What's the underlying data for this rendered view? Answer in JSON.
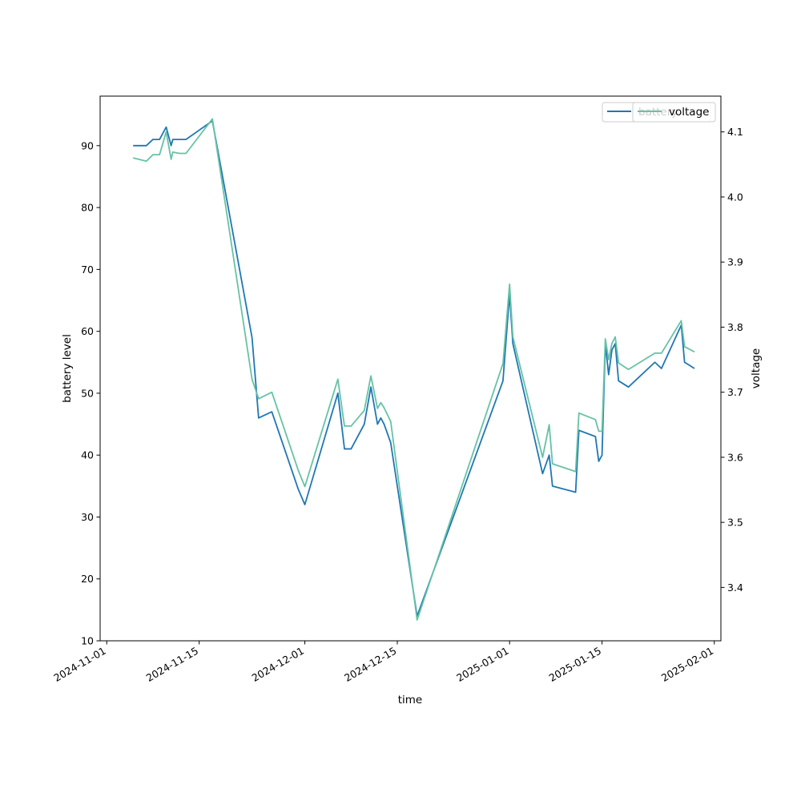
{
  "chart_data": {
    "type": "line",
    "xlabel": "time",
    "ylabel_left": "battery level",
    "ylabel_right": "voltage",
    "x_ticks": [
      "2024-11-01",
      "2024-11-15",
      "2024-12-01",
      "2024-12-15",
      "2025-01-01",
      "2025-01-15",
      "2025-02-01"
    ],
    "y_left_ticks": [
      10,
      20,
      30,
      40,
      50,
      60,
      70,
      80,
      90
    ],
    "y_right_ticks": [
      3.4,
      3.5,
      3.6,
      3.7,
      3.8,
      3.9,
      4.0,
      4.1
    ],
    "x_range": [
      "2024-10-31",
      "2025-02-02"
    ],
    "y_left_range": [
      10,
      98
    ],
    "y_right_range": [
      3.318,
      4.155
    ],
    "legend_placement": "top-right",
    "legend": {
      "battery_label": "battery",
      "voltage_label": "voltage"
    },
    "series": [
      {
        "name": "battery",
        "axis": "left",
        "color": "#1f77b4",
        "points": [
          [
            "2024-11-05",
            90
          ],
          [
            "2024-11-07",
            90
          ],
          [
            "2024-11-08",
            91
          ],
          [
            "2024-11-09",
            91
          ],
          [
            "2024-11-10",
            93
          ],
          [
            "2024-11-10T18",
            90
          ],
          [
            "2024-11-11",
            91
          ],
          [
            "2024-11-13",
            91
          ],
          [
            "2024-11-17",
            94
          ],
          [
            "2024-11-23",
            59
          ],
          [
            "2024-11-24",
            46
          ],
          [
            "2024-11-26",
            47
          ],
          [
            "2024-11-30",
            34.5
          ],
          [
            "2024-12-01",
            32
          ],
          [
            "2024-12-06",
            50
          ],
          [
            "2024-12-07",
            41
          ],
          [
            "2024-12-08",
            41
          ],
          [
            "2024-12-10",
            45
          ],
          [
            "2024-12-11",
            51
          ],
          [
            "2024-12-12",
            45
          ],
          [
            "2024-12-12T12",
            46
          ],
          [
            "2024-12-13",
            45
          ],
          [
            "2024-12-14",
            42
          ],
          [
            "2024-12-18",
            14
          ],
          [
            "2024-12-31",
            52
          ],
          [
            "2025-01-01",
            66
          ],
          [
            "2025-01-01T12",
            58
          ],
          [
            "2025-01-06",
            37
          ],
          [
            "2025-01-07",
            40
          ],
          [
            "2025-01-07T12",
            35
          ],
          [
            "2025-01-11",
            34
          ],
          [
            "2025-01-11T12",
            44
          ],
          [
            "2025-01-14",
            43
          ],
          [
            "2025-01-14T12",
            39
          ],
          [
            "2025-01-15",
            40
          ],
          [
            "2025-01-15T12",
            58
          ],
          [
            "2025-01-16",
            53
          ],
          [
            "2025-01-16T12",
            57
          ],
          [
            "2025-01-17",
            58
          ],
          [
            "2025-01-17T12",
            52
          ],
          [
            "2025-01-19",
            51
          ],
          [
            "2025-01-23",
            55
          ],
          [
            "2025-01-24",
            54
          ],
          [
            "2025-01-27",
            61
          ],
          [
            "2025-01-27T12",
            55
          ],
          [
            "2025-01-29",
            54
          ]
        ]
      },
      {
        "name": "voltage",
        "axis": "right",
        "color": "#66c2a5",
        "points": [
          [
            "2024-11-05",
            4.06
          ],
          [
            "2024-11-07",
            4.055
          ],
          [
            "2024-11-08",
            4.065
          ],
          [
            "2024-11-09",
            4.065
          ],
          [
            "2024-11-10",
            4.1
          ],
          [
            "2024-11-10T18",
            4.058
          ],
          [
            "2024-11-11",
            4.069
          ],
          [
            "2024-11-12",
            4.067
          ],
          [
            "2024-11-13",
            4.067
          ],
          [
            "2024-11-17",
            4.12
          ],
          [
            "2024-11-23",
            3.72
          ],
          [
            "2024-11-24",
            3.69
          ],
          [
            "2024-11-26",
            3.7
          ],
          [
            "2024-11-30",
            3.58
          ],
          [
            "2024-12-01",
            3.555
          ],
          [
            "2024-12-06",
            3.72
          ],
          [
            "2024-12-07",
            3.648
          ],
          [
            "2024-12-08",
            3.648
          ],
          [
            "2024-12-10",
            3.672
          ],
          [
            "2024-12-11",
            3.725
          ],
          [
            "2024-12-12",
            3.675
          ],
          [
            "2024-12-12T12",
            3.684
          ],
          [
            "2024-12-13",
            3.676
          ],
          [
            "2024-12-14",
            3.655
          ],
          [
            "2024-12-18",
            3.35
          ],
          [
            "2024-12-31",
            3.744
          ],
          [
            "2025-01-01",
            3.866
          ],
          [
            "2025-01-01T12",
            3.785
          ],
          [
            "2025-01-06",
            3.6
          ],
          [
            "2025-01-07",
            3.65
          ],
          [
            "2025-01-07T12",
            3.59
          ],
          [
            "2025-01-11",
            3.578
          ],
          [
            "2025-01-11T12",
            3.668
          ],
          [
            "2025-01-14",
            3.658
          ],
          [
            "2025-01-14T12",
            3.64
          ],
          [
            "2025-01-15",
            3.64
          ],
          [
            "2025-01-15T12",
            3.782
          ],
          [
            "2025-01-16",
            3.75
          ],
          [
            "2025-01-16T12",
            3.775
          ],
          [
            "2025-01-17",
            3.785
          ],
          [
            "2025-01-17T12",
            3.745
          ],
          [
            "2025-01-19",
            3.735
          ],
          [
            "2025-01-23",
            3.76
          ],
          [
            "2025-01-24",
            3.76
          ],
          [
            "2025-01-27",
            3.81
          ],
          [
            "2025-01-27T12",
            3.77
          ],
          [
            "2025-01-29",
            3.762
          ]
        ]
      }
    ]
  }
}
